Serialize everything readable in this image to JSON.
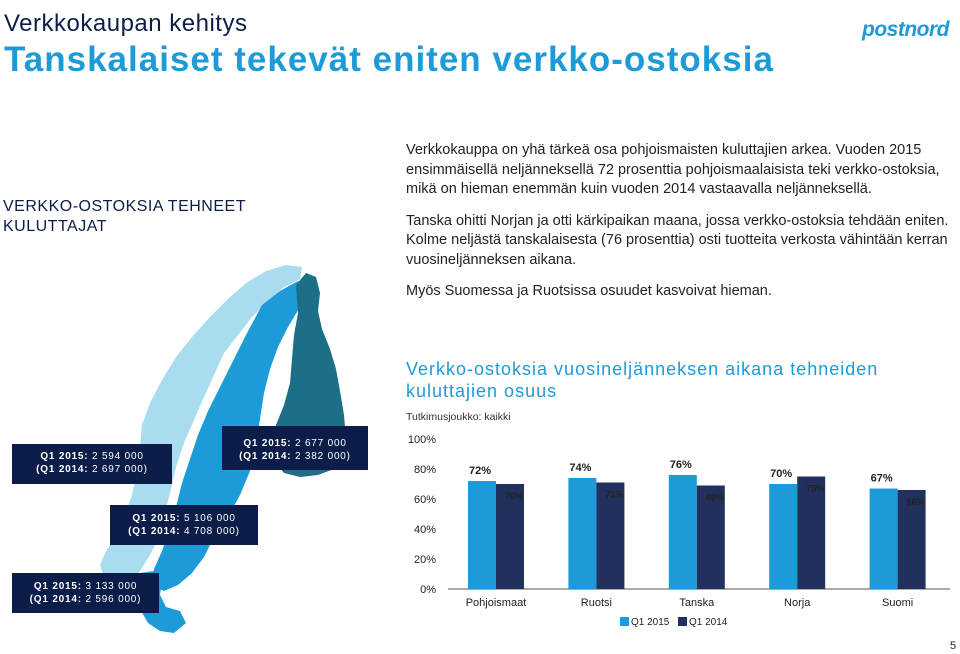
{
  "header": {
    "kicker": "Verkkokaupan kehitys",
    "title": "Tanskalaiset tekevät eniten verkko-ostoksia",
    "logo": "postnord"
  },
  "side_heading": "VERKKO-OSTOKSIA TEHNEET KULUTTAJAT",
  "body": {
    "p1": "Verkkokauppa on yhä tärkeä osa pohjoismaisten kuluttajien arkea. Vuoden 2015 ensimmäisellä neljänneksellä 72 prosenttia pohjoismaalaisista teki verkko-ostoksia, mikä on hieman enemmän kuin vuoden 2014 vastaavalla neljänneksellä.",
    "p2": "Tanska ohitti Norjan ja otti kärkipaikan maana, jossa verkko-ostoksia tehdään eniten. Kolme neljästä tanskalaisesta (76 prosenttia) osti tuotteita verkosta vähintään kerran vuosineljänneksen aikana.",
    "p3": "Myös Suomessa ja Ruotsissa osuudet kasvoivat hieman."
  },
  "map_stats": {
    "finland": {
      "l1_label": "Q1 2015:",
      "l1_value": " 2 677 000",
      "l2_label": "(Q1 2014:",
      "l2_value": " 2 382 000)"
    },
    "norway": {
      "l1_label": "Q1 2015:",
      "l1_value": " 2 594 000",
      "l2_label": "(Q1 2014:",
      "l2_value": " 2 697 000)"
    },
    "sweden": {
      "l1_label": "Q1 2015:",
      "l1_value": " 5 106 000",
      "l2_label": "(Q1 2014:",
      "l2_value": " 4 708 000)"
    },
    "denmark": {
      "l1_label": "Q1 2015:",
      "l1_value": " 3 133 000",
      "l2_label": "(Q1 2014:",
      "l2_value": " 2 596 000)"
    }
  },
  "colors": {
    "q2015": "#1d9bd8",
    "q2014": "#22305e",
    "map_norway": "#a9dcef",
    "map_sweden": "#1d9bd8",
    "map_finland": "#1c6f86",
    "stat_box": "#0d1d4a"
  },
  "chart_data": {
    "type": "bar",
    "title": "Verkko-ostoksia vuosineljänneksen aikana tehneiden kuluttajien osuus",
    "subtitle": "Tutkimusjoukko: kaikki",
    "categories": [
      "Pohjoismaat",
      "Ruotsi",
      "Tanska",
      "Norja",
      "Suomi"
    ],
    "series": [
      {
        "name": "Q1 2015",
        "values": [
          72,
          74,
          76,
          70,
          67
        ],
        "labels": [
          "72%",
          "74%",
          "76%",
          "70%",
          "67%"
        ]
      },
      {
        "name": "Q1 2014",
        "values": [
          70,
          71,
          69,
          75,
          66
        ],
        "labels": [
          "70%",
          "71%",
          "69%",
          "75%",
          "66%"
        ]
      }
    ],
    "ylim": [
      0,
      100
    ],
    "yticks": [
      0,
      20,
      40,
      60,
      80,
      100
    ],
    "ytick_labels": [
      "0%",
      "20%",
      "40%",
      "60%",
      "80%",
      "100%"
    ],
    "legend": "bottom",
    "grid": false
  },
  "page_number": "5"
}
